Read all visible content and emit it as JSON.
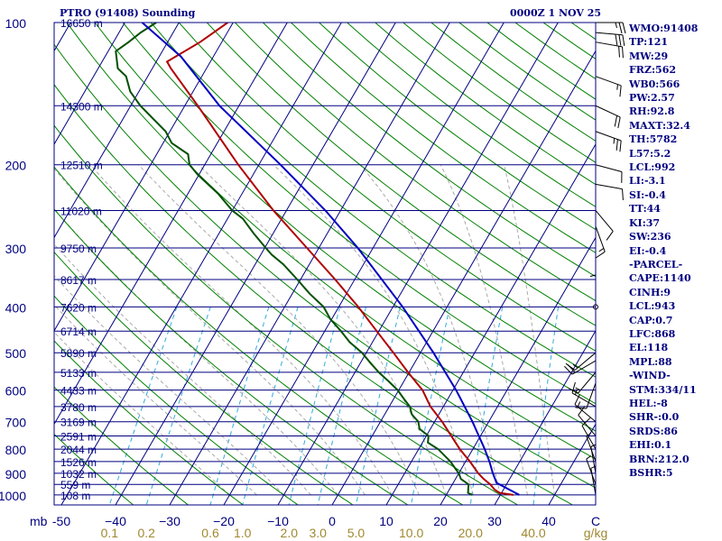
{
  "header": {
    "station": "PTRO (91408) Sounding",
    "time": "0000Z  1 NOV 25"
  },
  "stats": [
    "WMO:91408",
    "TP:121",
    "MW:29",
    "FRZ:562",
    "WB0:566",
    "PW:2.57",
    "RH:92.8",
    "MAXT:32.4",
    "TH:5782",
    "L57:5.2",
    "LCL:992",
    "LI:-3.1",
    "SI:-0.4",
    "TT:44",
    "KI:37",
    "SW:236",
    "EI:-0.4",
    "-PARCEL-",
    "CAPE:1140",
    "CINH:9",
    "LCL:943",
    "CAP:0.7",
    "LFC:868",
    "EL:118",
    "MPL:88",
    "-WIND-",
    "STM:334/11",
    "HEL:-8",
    "SHR-:0.0",
    "SRDS:86",
    "EHI:0.1",
    "BRN:212.0",
    "BSHR:5"
  ],
  "colors": {
    "isobar": "#000080",
    "isotherm": "#000080",
    "dry_adiabat": "#008000",
    "moist_adiabat": "#aaaaaa",
    "mixing_ratio": "#33aadd",
    "temperature": "#b00000",
    "dewpoint": "#005000",
    "parcel": "#0000c0",
    "wind": "#000000"
  },
  "chart_data": {
    "type": "skew-t",
    "pressure_label": "mb",
    "mixing_ratio_unit": "g/kg",
    "pressure_ticks": [
      100,
      200,
      300,
      400,
      500,
      600,
      700,
      800,
      900,
      1000
    ],
    "isobars": [
      100,
      150,
      200,
      250,
      300,
      350,
      400,
      450,
      500,
      550,
      600,
      650,
      700,
      750,
      800,
      850,
      900,
      950,
      1000
    ],
    "heights": [
      {
        "p": 100,
        "h": "16650 m"
      },
      {
        "p": 150,
        "h": "14300 m"
      },
      {
        "p": 200,
        "h": "12510 m"
      },
      {
        "p": 250,
        "h": "11020 m"
      },
      {
        "p": 300,
        "h": "9750 m"
      },
      {
        "p": 350,
        "h": "8617 m"
      },
      {
        "p": 400,
        "h": "7620 m"
      },
      {
        "p": 450,
        "h": "6714 m"
      },
      {
        "p": 500,
        "h": "5890 m"
      },
      {
        "p": 550,
        "h": "5133 m"
      },
      {
        "p": 600,
        "h": "4433 m"
      },
      {
        "p": 650,
        "h": "3780 m"
      },
      {
        "p": 700,
        "h": "3169 m"
      },
      {
        "p": 750,
        "h": "2591 m"
      },
      {
        "p": 800,
        "h": "2044 m"
      },
      {
        "p": 850,
        "h": "1526 m"
      },
      {
        "p": 900,
        "h": "1032 m"
      },
      {
        "p": 950,
        "h": "559 m"
      },
      {
        "p": 1000,
        "h": "108 m"
      }
    ],
    "temperature_ticks": [
      -50,
      -40,
      -30,
      -20,
      -10,
      0,
      10,
      20,
      30,
      40
    ],
    "temperature_tick_labels": [
      "-50",
      "−40",
      "−30",
      "−20",
      "−10",
      "0",
      "10",
      "20",
      "30",
      "40"
    ],
    "mixing_ratio_ticks": [
      {
        "w": 0.1,
        "label": "0.1"
      },
      {
        "w": 0.2,
        "label": "0.2"
      },
      {
        "w": 0.6,
        "label": "0.6"
      },
      {
        "w": 1.0,
        "label": "1.0"
      },
      {
        "w": 2.0,
        "label": "2.0"
      },
      {
        "w": 3.0,
        "label": "3.0"
      },
      {
        "w": 5.0,
        "label": "5.0"
      },
      {
        "w": 10.0,
        "label": "10.0"
      },
      {
        "w": 20.0,
        "label": "20.0"
      },
      {
        "w": 40.0,
        "label": "40.0"
      }
    ],
    "temperature": [
      {
        "p": 1000,
        "t": 32.4
      },
      {
        "p": 990,
        "t": 29.6
      },
      {
        "p": 975,
        "t": 28.4
      },
      {
        "p": 950,
        "t": 27.0
      },
      {
        "p": 925,
        "t": 25.2
      },
      {
        "p": 900,
        "t": 23.6
      },
      {
        "p": 850,
        "t": 20.8
      },
      {
        "p": 800,
        "t": 17.6
      },
      {
        "p": 750,
        "t": 14.6
      },
      {
        "p": 700,
        "t": 11.4
      },
      {
        "p": 650,
        "t": 7.6
      },
      {
        "p": 600,
        "t": 4.4
      },
      {
        "p": 550,
        "t": -0.2
      },
      {
        "p": 500,
        "t": -5.0
      },
      {
        "p": 450,
        "t": -10.4
      },
      {
        "p": 400,
        "t": -16.4
      },
      {
        "p": 350,
        "t": -23.6
      },
      {
        "p": 300,
        "t": -32.2
      },
      {
        "p": 250,
        "t": -42.4
      },
      {
        "p": 200,
        "t": -53.8
      },
      {
        "p": 150,
        "t": -67.6
      },
      {
        "p": 125,
        "t": -76.6
      },
      {
        "p": 121,
        "t": -78.0
      },
      {
        "p": 110,
        "t": -74.0
      },
      {
        "p": 100,
        "t": -71.0
      }
    ],
    "dewpoint": [
      {
        "p": 1000,
        "t": 24.8
      },
      {
        "p": 990,
        "t": 23.8
      },
      {
        "p": 975,
        "t": 23.5
      },
      {
        "p": 950,
        "t": 23.0
      },
      {
        "p": 925,
        "t": 21.0
      },
      {
        "p": 900,
        "t": 20.0
      },
      {
        "p": 875,
        "t": 18.6
      },
      {
        "p": 850,
        "t": 17.2
      },
      {
        "p": 800,
        "t": 13.6
      },
      {
        "p": 775,
        "t": 11.0
      },
      {
        "p": 750,
        "t": 10.4
      },
      {
        "p": 725,
        "t": 8.0
      },
      {
        "p": 700,
        "t": 7.0
      },
      {
        "p": 675,
        "t": 5.0
      },
      {
        "p": 650,
        "t": 3.8
      },
      {
        "p": 625,
        "t": 1.8
      },
      {
        "p": 600,
        "t": -0.2
      },
      {
        "p": 575,
        "t": -2.8
      },
      {
        "p": 550,
        "t": -5.6
      },
      {
        "p": 525,
        "t": -8.2
      },
      {
        "p": 500,
        "t": -10.8
      },
      {
        "p": 475,
        "t": -14.2
      },
      {
        "p": 450,
        "t": -17.0
      },
      {
        "p": 425,
        "t": -20.2
      },
      {
        "p": 400,
        "t": -22.8
      },
      {
        "p": 375,
        "t": -26.8
      },
      {
        "p": 350,
        "t": -30.6
      },
      {
        "p": 325,
        "t": -34.8
      },
      {
        "p": 310,
        "t": -38.0
      },
      {
        "p": 300,
        "t": -39.8
      },
      {
        "p": 280,
        "t": -43.5
      },
      {
        "p": 260,
        "t": -47.2
      },
      {
        "p": 250,
        "t": -50.0
      },
      {
        "p": 230,
        "t": -54.5
      },
      {
        "p": 210,
        "t": -60.2
      },
      {
        "p": 200,
        "t": -62.8
      },
      {
        "p": 190,
        "t": -64.2
      },
      {
        "p": 180,
        "t": -68.4
      },
      {
        "p": 170,
        "t": -70.8
      },
      {
        "p": 160,
        "t": -74.4
      },
      {
        "p": 150,
        "t": -78.2
      },
      {
        "p": 140,
        "t": -81.6
      },
      {
        "p": 130,
        "t": -84.0
      },
      {
        "p": 125,
        "t": -86.4
      },
      {
        "p": 115,
        "t": -88.6
      },
      {
        "p": 110,
        "t": -87.2
      },
      {
        "p": 105,
        "t": -86.0
      },
      {
        "p": 100,
        "t": -84.2
      }
    ],
    "parcel": [
      {
        "p": 1000,
        "t": 33.5
      },
      {
        "p": 943,
        "t": 28.0
      },
      {
        "p": 900,
        "t": 26.3
      },
      {
        "p": 850,
        "t": 24.4
      },
      {
        "p": 800,
        "t": 22.2
      },
      {
        "p": 700,
        "t": 17.0
      },
      {
        "p": 600,
        "t": 10.6
      },
      {
        "p": 500,
        "t": 2.4
      },
      {
        "p": 400,
        "t": -8.2
      },
      {
        "p": 300,
        "t": -22.8
      },
      {
        "p": 250,
        "t": -32.8
      },
      {
        "p": 200,
        "t": -46.0
      },
      {
        "p": 150,
        "t": -63.6
      },
      {
        "p": 118,
        "t": -76.0
      },
      {
        "p": 100,
        "t": -86.8
      }
    ],
    "winds": [
      {
        "p": 100,
        "dir": 90,
        "spd": 25
      },
      {
        "p": 105,
        "dir": 95,
        "spd": 30
      },
      {
        "p": 110,
        "dir": 100,
        "spd": 20
      },
      {
        "p": 130,
        "dir": 110,
        "spd": 15
      },
      {
        "p": 150,
        "dir": 115,
        "spd": 20
      },
      {
        "p": 170,
        "dir": 110,
        "spd": 25
      },
      {
        "p": 200,
        "dir": 105,
        "spd": 10
      },
      {
        "p": 220,
        "dir": 100,
        "spd": 10
      },
      {
        "p": 250,
        "dir": 140,
        "spd": 10
      },
      {
        "p": 270,
        "dir": 160,
        "spd": 15
      },
      {
        "p": 300,
        "dir": 180,
        "spd": 5
      },
      {
        "p": 400,
        "dir": 0,
        "spd": 0
      },
      {
        "p": 500,
        "dir": 230,
        "spd": 15
      },
      {
        "p": 520,
        "dir": 240,
        "spd": 20
      },
      {
        "p": 550,
        "dir": 220,
        "spd": 15
      },
      {
        "p": 580,
        "dir": 200,
        "spd": 10
      },
      {
        "p": 650,
        "dir": 300,
        "spd": 15
      },
      {
        "p": 700,
        "dir": 310,
        "spd": 15
      },
      {
        "p": 750,
        "dir": 320,
        "spd": 10
      },
      {
        "p": 800,
        "dir": 330,
        "spd": 10
      },
      {
        "p": 850,
        "dir": 340,
        "spd": 5
      },
      {
        "p": 900,
        "dir": 350,
        "spd": 5
      },
      {
        "p": 950,
        "dir": 340,
        "spd": 5
      },
      {
        "p": 1000,
        "dir": 350,
        "spd": 5
      }
    ]
  }
}
